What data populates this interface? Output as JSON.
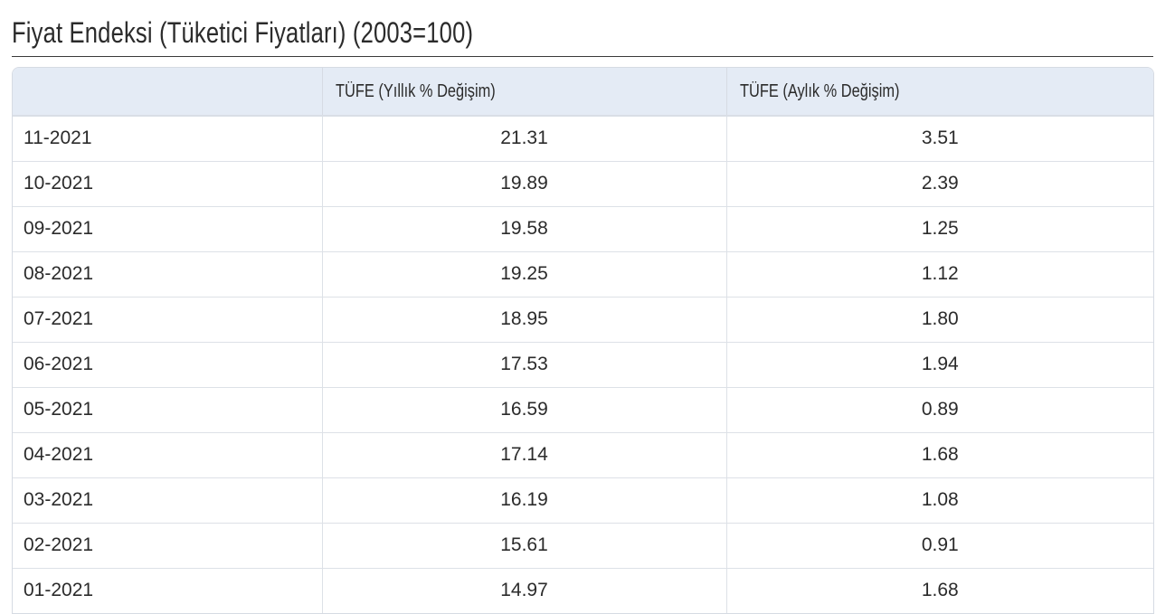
{
  "page": {
    "title": "Fiyat Endeksi (Tüketici Fiyatları) (2003=100)"
  },
  "table": {
    "headers": [
      "",
      "TÜFE (Yıllık % Değişim)",
      "TÜFE (Aylık % Değişim)"
    ],
    "rows": [
      {
        "period": "11-2021",
        "annual": "21.31",
        "monthly": "3.51"
      },
      {
        "period": "10-2021",
        "annual": "19.89",
        "monthly": "2.39"
      },
      {
        "period": "09-2021",
        "annual": "19.58",
        "monthly": "1.25"
      },
      {
        "period": "08-2021",
        "annual": "19.25",
        "monthly": "1.12"
      },
      {
        "period": "07-2021",
        "annual": "18.95",
        "monthly": "1.80"
      },
      {
        "period": "06-2021",
        "annual": "17.53",
        "monthly": "1.94"
      },
      {
        "period": "05-2021",
        "annual": "16.59",
        "monthly": "0.89"
      },
      {
        "period": "04-2021",
        "annual": "17.14",
        "monthly": "1.68"
      },
      {
        "period": "03-2021",
        "annual": "16.19",
        "monthly": "1.08"
      },
      {
        "period": "02-2021",
        "annual": "15.61",
        "monthly": "0.91"
      },
      {
        "period": "01-2021",
        "annual": "14.97",
        "monthly": "1.68"
      }
    ]
  },
  "colors": {
    "header_bg": "#e4ebf5",
    "border": "#d6dbe3",
    "text": "#2b2b2b"
  }
}
